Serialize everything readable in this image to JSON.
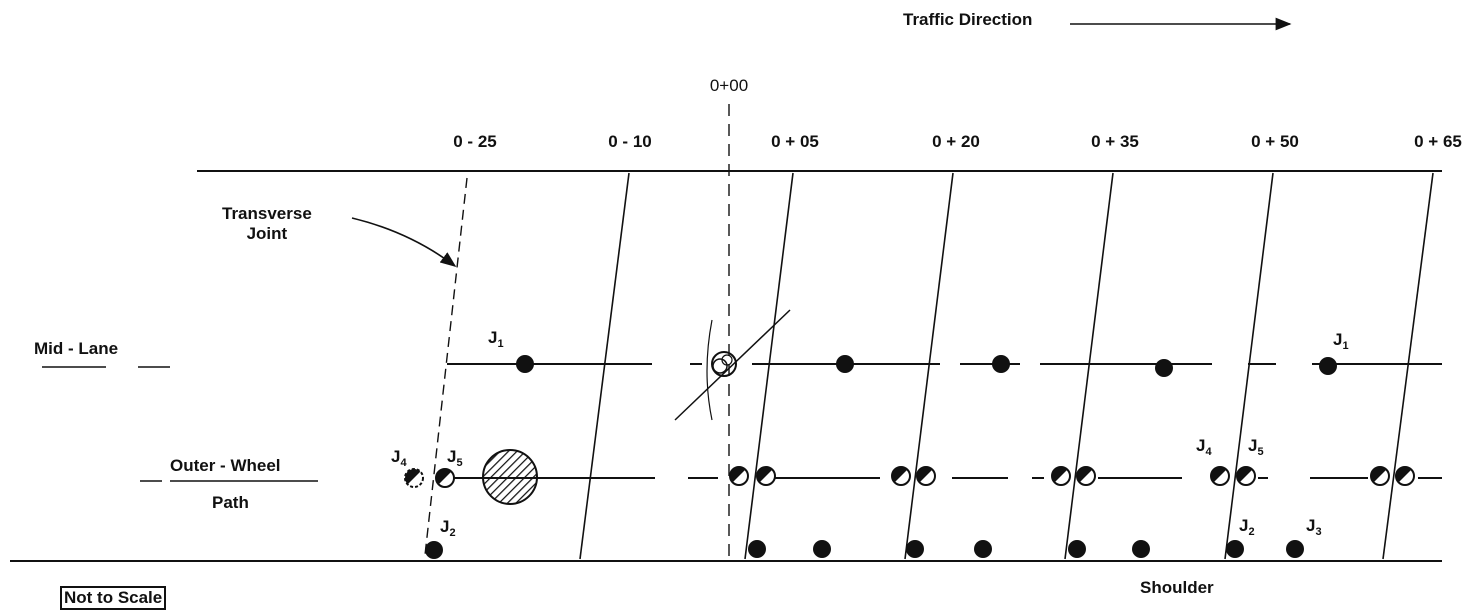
{
  "title": "Traffic Direction",
  "center_station": "0+00",
  "stations": [
    "0 - 25",
    "0 - 10",
    "0 + 05",
    "0 + 20",
    "0 + 35",
    "0 + 50",
    "0 + 65"
  ],
  "transverse_joint_label": {
    "line1": "Transverse",
    "line2": "Joint"
  },
  "rows": {
    "mid_lane": "Mid - Lane",
    "outer_wheel_path": {
      "line1": "Outer - Wheel",
      "line2": "Path"
    }
  },
  "shoulder_label": "Shoulder",
  "scale_note": "Not to Scale",
  "point_labels": {
    "j1": "J",
    "j1_sub": "1",
    "j2": "J",
    "j2_sub": "2",
    "j3": "J",
    "j3_sub": "3",
    "j4": "J",
    "j4_sub": "4",
    "j5": "J",
    "j5_sub": "5"
  },
  "colors": {
    "ink": "#111111",
    "paper": "#ffffff"
  }
}
